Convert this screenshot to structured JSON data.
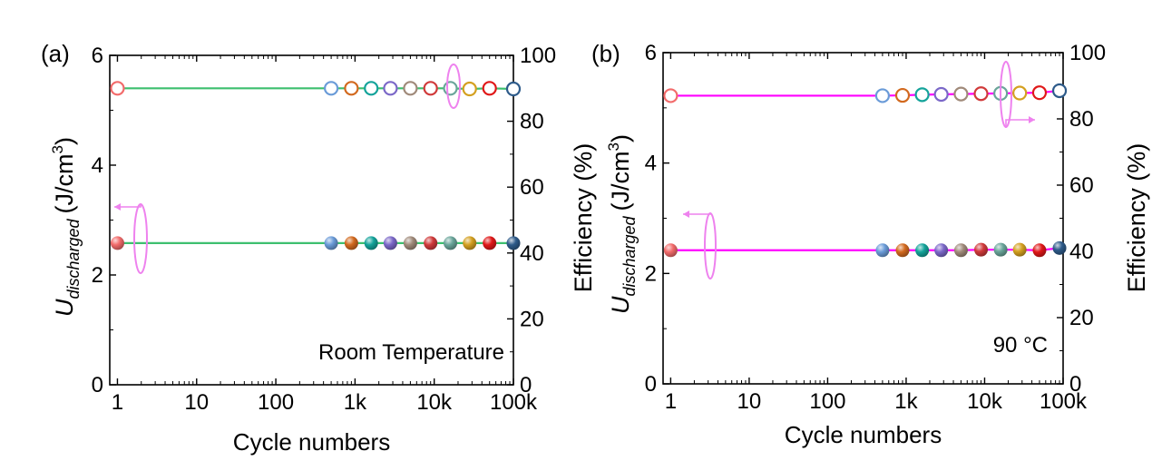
{
  "chart_data": [
    {
      "type": "scatter",
      "panel_label": "(a)",
      "annotation": "Room Temperature",
      "xlabel": "Cycle numbers",
      "xscale": "log",
      "xlim": [
        0.8,
        100000
      ],
      "x_ticks": [
        1,
        10,
        100,
        1000,
        10000,
        100000
      ],
      "x_tick_labels": [
        "1",
        "10",
        "100",
        "1k",
        "10k",
        "100k"
      ],
      "ylabel_left": {
        "main": "U",
        "sub": "discharged",
        "unit": "(J/cm",
        "sup": "3",
        "close": ")"
      },
      "ylim_left": [
        0,
        6
      ],
      "y_ticks_left": [
        "0",
        "2",
        "4",
        "6"
      ],
      "ylabel_right": "Efficiency (%)",
      "ylim_right": [
        0,
        100
      ],
      "y_ticks_right": [
        "0",
        "20",
        "40",
        "60",
        "80",
        "100"
      ],
      "grid": false,
      "line_color": "#3dbf6f",
      "x": [
        1,
        500,
        900,
        1600,
        2800,
        5000,
        9000,
        16000,
        28000,
        50000,
        100000
      ],
      "series": [
        {
          "axis": "left",
          "marker": "filled",
          "values": [
            2.58,
            2.58,
            2.58,
            2.58,
            2.58,
            2.58,
            2.58,
            2.58,
            2.58,
            2.58,
            2.58
          ]
        },
        {
          "axis": "right",
          "marker": "open",
          "values": [
            90.0,
            90.0,
            90.0,
            90.0,
            90.0,
            90.0,
            90.0,
            90.0,
            89.8,
            90.0,
            89.8
          ]
        }
      ],
      "point_colors": [
        "#f26b6b",
        "#6a9bd8",
        "#d2691e",
        "#14a39a",
        "#7b68c8",
        "#a08a7a",
        "#d03a3a",
        "#6aa59a",
        "#d4a020",
        "#e01818",
        "#2e5b8a"
      ],
      "indicator_color": "#ee82ee"
    },
    {
      "type": "scatter",
      "panel_label": "(b)",
      "annotation": "90 °C",
      "xlabel": "Cycle numbers",
      "xscale": "log",
      "xlim": [
        0.8,
        100000
      ],
      "x_ticks": [
        1,
        10,
        100,
        1000,
        10000,
        100000
      ],
      "x_tick_labels": [
        "1",
        "10",
        "100",
        "1k",
        "10k",
        "100k"
      ],
      "ylabel_left": {
        "main": "U",
        "sub": "discharged",
        "unit": "(J/cm",
        "sup": "3",
        "close": ")"
      },
      "ylim_left": [
        0,
        6
      ],
      "y_ticks_left": [
        "0",
        "2",
        "4",
        "6"
      ],
      "ylabel_right": "Efficiency (%)",
      "ylim_right": [
        0,
        100
      ],
      "y_ticks_right": [
        "0",
        "20",
        "40",
        "60",
        "80",
        "100"
      ],
      "grid": false,
      "line_color": "#ff00ff",
      "x": [
        1,
        500,
        900,
        1600,
        2800,
        5000,
        9000,
        16000,
        28000,
        50000,
        90000
      ],
      "series": [
        {
          "axis": "left",
          "marker": "filled",
          "values": [
            2.42,
            2.42,
            2.42,
            2.42,
            2.42,
            2.42,
            2.43,
            2.43,
            2.43,
            2.42,
            2.46
          ]
        },
        {
          "axis": "right",
          "marker": "open",
          "values": [
            87.0,
            87.0,
            87.1,
            87.3,
            87.4,
            87.5,
            87.6,
            87.7,
            87.8,
            87.9,
            88.5
          ]
        }
      ],
      "point_colors": [
        "#f26b6b",
        "#6a9bd8",
        "#d2691e",
        "#14a39a",
        "#7b68c8",
        "#a08a7a",
        "#d03a3a",
        "#6aa59a",
        "#d4a020",
        "#e01818",
        "#2e5b8a"
      ],
      "indicator_color": "#ee82ee"
    }
  ]
}
